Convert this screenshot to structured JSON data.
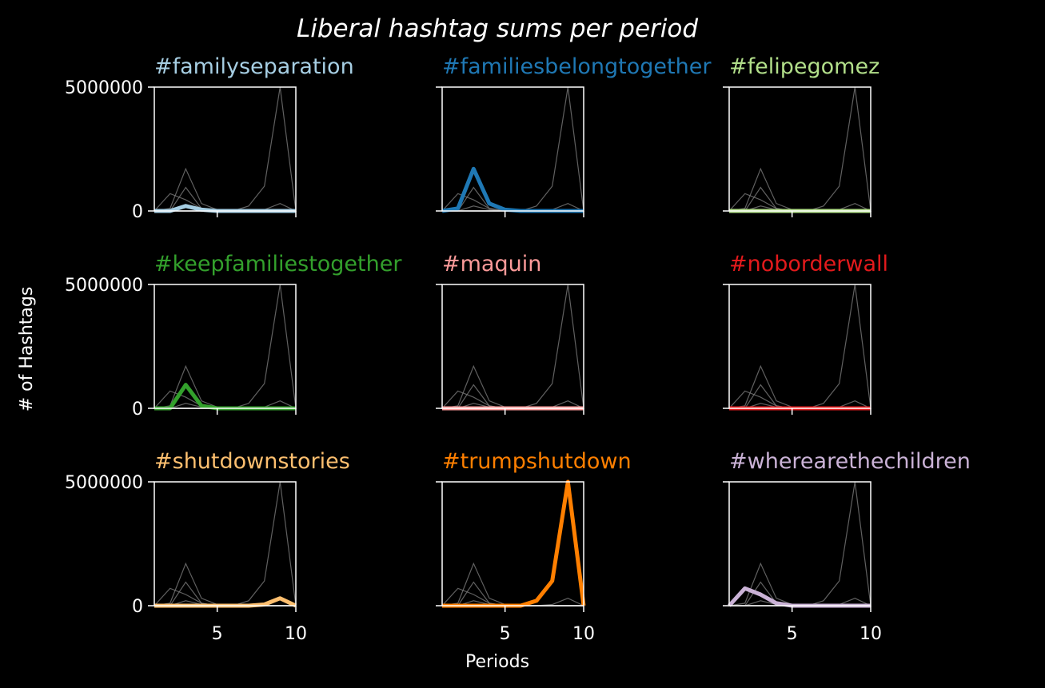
{
  "chart_data": {
    "type": "line",
    "title": "Liberal hashtag sums per period",
    "xlabel": "Periods",
    "ylabel": "# of Hashtags",
    "x": [
      1,
      2,
      3,
      4,
      5,
      6,
      7,
      8,
      9,
      10
    ],
    "xlim": [
      1,
      10
    ],
    "ylim": [
      0,
      5000000
    ],
    "xticks": [
      "5",
      "10"
    ],
    "yticks": [
      "0",
      "5000000"
    ],
    "grid": false,
    "legend": "none",
    "series": [
      {
        "name": "#familyseparation",
        "color": "#a6cee3",
        "values": [
          0,
          0,
          200000,
          50000,
          0,
          0,
          0,
          0,
          0,
          0
        ]
      },
      {
        "name": "#familiesbelongtogether",
        "color": "#1f78b4",
        "values": [
          0,
          100000,
          1700000,
          300000,
          50000,
          0,
          0,
          0,
          0,
          0
        ]
      },
      {
        "name": "#felipegomez",
        "color": "#b2df8a",
        "values": [
          0,
          0,
          0,
          0,
          0,
          0,
          0,
          0,
          0,
          0
        ]
      },
      {
        "name": "#keepfamiliestogether",
        "color": "#33a02c",
        "values": [
          0,
          0,
          950000,
          100000,
          0,
          0,
          0,
          0,
          0,
          0
        ]
      },
      {
        "name": "#maquin",
        "color": "#fb9a99",
        "values": [
          0,
          0,
          0,
          0,
          0,
          0,
          0,
          0,
          0,
          0
        ]
      },
      {
        "name": "#noborderwall",
        "color": "#e31a1c",
        "values": [
          0,
          0,
          0,
          0,
          0,
          0,
          0,
          0,
          0,
          0
        ]
      },
      {
        "name": "#shutdownstories",
        "color": "#fdbf6f",
        "values": [
          0,
          0,
          0,
          0,
          0,
          0,
          0,
          50000,
          300000,
          0
        ]
      },
      {
        "name": "#trumpshutdown",
        "color": "#ff7f00",
        "values": [
          0,
          0,
          0,
          0,
          0,
          0,
          200000,
          1000000,
          5000000,
          0
        ]
      },
      {
        "name": "#wherearethechildren",
        "color": "#cab2d6",
        "values": [
          0,
          700000,
          450000,
          100000,
          0,
          0,
          0,
          0,
          0,
          0
        ]
      }
    ]
  }
}
